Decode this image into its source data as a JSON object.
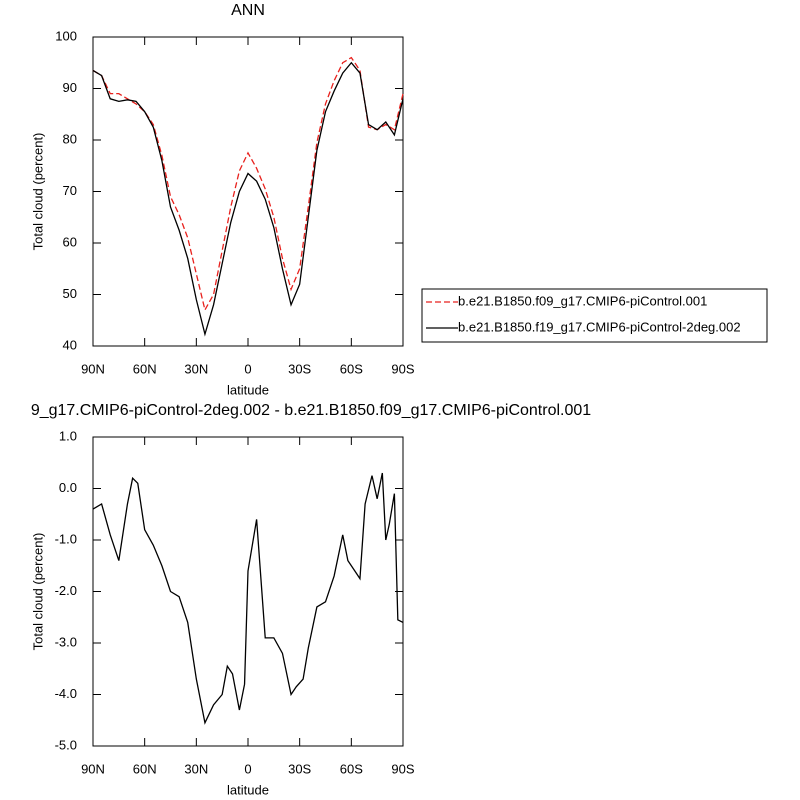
{
  "chart_data": [
    {
      "type": "line",
      "title": "ANN",
      "xlabel": "latitude",
      "ylabel": "Total cloud (percent)",
      "x": [
        90,
        85,
        80,
        75,
        70,
        65,
        60,
        55,
        50,
        45,
        40,
        35,
        30,
        25,
        20,
        15,
        10,
        5,
        0,
        -5,
        -10,
        -15,
        -20,
        -25,
        -30,
        -35,
        -40,
        -45,
        -50,
        -55,
        -60,
        -65,
        -70,
        -75,
        -80,
        -85,
        -90
      ],
      "series": [
        {
          "name": "b.e21.B1850.f09_g17.CMIP6-piControl.001",
          "color": "#e8211d",
          "dash": true,
          "values": [
            93.5,
            92.5,
            89,
            89,
            88,
            87,
            85.5,
            83,
            77,
            69,
            65.5,
            61,
            54,
            47,
            50,
            58.5,
            67,
            74,
            77.5,
            74.5,
            70.5,
            65,
            57,
            51,
            55,
            67,
            79.5,
            87,
            91.5,
            95,
            96,
            93.5,
            82.5,
            82,
            83,
            82,
            89
          ]
        },
        {
          "name": "b.e21.B1850.f19_g17.CMIP6-piControl-2deg.002",
          "color": "#000000",
          "dash": false,
          "values": [
            93.5,
            92.5,
            88,
            87.5,
            87.8,
            87.5,
            85.5,
            82.5,
            76,
            67,
            62.5,
            57,
            49,
            42.3,
            48,
            56,
            64,
            70,
            73.5,
            72,
            68.5,
            63,
            55,
            48,
            52,
            65,
            78,
            85.5,
            89.5,
            93,
            95,
            93,
            83,
            82,
            83.5,
            81,
            88
          ]
        }
      ],
      "xlim": [
        90,
        -90
      ],
      "xticks": [
        {
          "value": 90,
          "label": "90N"
        },
        {
          "value": 60,
          "label": "60N"
        },
        {
          "value": 30,
          "label": "30N"
        },
        0,
        {
          "value": -30,
          "label": "30S"
        },
        {
          "value": -60,
          "label": "60S"
        },
        {
          "value": -90,
          "label": "90S"
        }
      ],
      "ylim": [
        40,
        100
      ],
      "yticks": [
        40,
        50,
        60,
        70,
        80,
        90,
        100
      ],
      "legend": "right"
    },
    {
      "type": "line",
      "title": "9_g17.CMIP6-piControl-2deg.002 - b.e21.B1850.f09_g17.CMIP6-piControl.001",
      "xlabel": "latitude",
      "ylabel": "Total cloud (percent)",
      "x": [
        90,
        85,
        80,
        75,
        70,
        67,
        64,
        60,
        55,
        50,
        45,
        40,
        35,
        30,
        25,
        20,
        15,
        12,
        9,
        5,
        2,
        0,
        -5,
        -10,
        -15,
        -20,
        -25,
        -28,
        -32,
        -35,
        -40,
        -45,
        -50,
        -55,
        -58,
        -62,
        -65,
        -68,
        -72,
        -75,
        -78,
        -80,
        -82,
        -85,
        -87,
        -90
      ],
      "series": [
        {
          "color": "#000000",
          "dash": false,
          "values": [
            -0.4,
            -0.3,
            -0.9,
            -1.4,
            -0.3,
            0.2,
            0.1,
            -0.8,
            -1.1,
            -1.5,
            -2.0,
            -2.1,
            -2.6,
            -3.7,
            -4.55,
            -4.2,
            -4.0,
            -3.45,
            -3.6,
            -4.3,
            -3.8,
            -1.6,
            -0.6,
            -2.9,
            -2.9,
            -3.2,
            -4.0,
            -3.85,
            -3.7,
            -3.1,
            -2.3,
            -2.2,
            -1.7,
            -0.9,
            -1.4,
            -1.6,
            -1.75,
            -0.3,
            0.25,
            -0.2,
            0.3,
            -1.0,
            -0.7,
            -0.1,
            -2.55,
            -2.6
          ]
        }
      ],
      "xlim": [
        90,
        -90
      ],
      "xticks": [
        {
          "value": 90,
          "label": "90N"
        },
        {
          "value": 60,
          "label": "60N"
        },
        {
          "value": 30,
          "label": "30N"
        },
        0,
        {
          "value": -30,
          "label": "30S"
        },
        {
          "value": -60,
          "label": "60S"
        },
        {
          "value": -90,
          "label": "90S"
        }
      ],
      "ylim": [
        -5,
        1
      ],
      "yticks": [
        {
          "value": -5,
          "label": "-5.0"
        },
        {
          "value": -4,
          "label": "-4.0"
        },
        {
          "value": -3,
          "label": "-3.0"
        },
        {
          "value": -2,
          "label": "-2.0"
        },
        {
          "value": -1,
          "label": "-1.0"
        },
        {
          "value": 0,
          "label": "0.0"
        },
        {
          "value": 1,
          "label": "1.0"
        }
      ]
    }
  ]
}
